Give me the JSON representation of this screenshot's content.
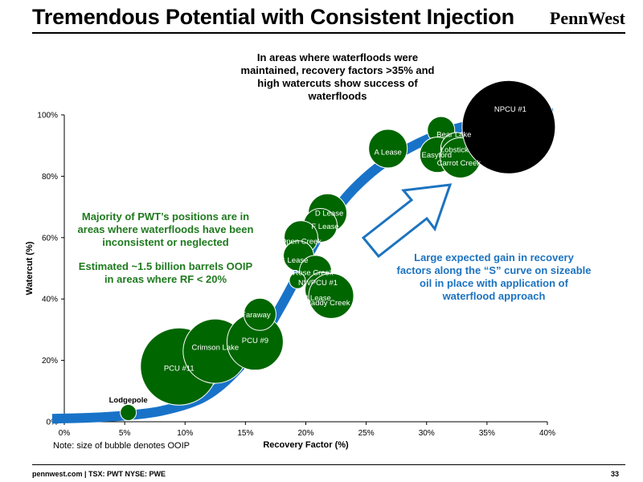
{
  "slide": {
    "title": "Tremendous Potential with Consistent Injection",
    "logo_text": "PennWest",
    "callout_top": "In areas where waterfloods were maintained, recovery factors >35% and high watercuts show success of waterfloods",
    "green_note_1": "Majority of PWT’s positions are in areas where waterfloods have been inconsistent or neglected",
    "green_note_2": "Estimated ~1.5 billion barrels OOIP in areas where RF < 20%",
    "blue_note": "Large expected gain in recovery factors along the “S” curve on sizeable oil in place with application of waterflood approach",
    "bubble_note": "Note: size of bubble denotes OOIP",
    "footer": "pennwest.com | TSX: PWT NYSE: PWE",
    "page_number": "33"
  },
  "colors": {
    "bubble": "#006600",
    "bubble_large": "#000000",
    "s_curve": "#1873c8",
    "arrow": "#1c73c0",
    "green_text": "#1f7a1f",
    "axis": "#000000"
  },
  "chart_data": {
    "type": "scatter",
    "title": "",
    "xlabel": "Recovery Factor (%)",
    "ylabel": "Watercut (%)",
    "xlim": [
      0,
      40
    ],
    "ylim": [
      0,
      100
    ],
    "x_ticks": [
      "0%",
      "5%",
      "10%",
      "15%",
      "20%",
      "25%",
      "30%",
      "35%",
      "40%"
    ],
    "y_ticks": [
      "0%",
      "20%",
      "40%",
      "60%",
      "80%",
      "100%"
    ],
    "grid": false,
    "trend_curve": {
      "shape": "S-curve",
      "x": [
        -1,
        2,
        5,
        8,
        11,
        13,
        15,
        16.5,
        18,
        19.5,
        21,
        22.5,
        24,
        26,
        28,
        30,
        32,
        34,
        36,
        38,
        40.5
      ],
      "y": [
        1,
        1.3,
        2,
        3.5,
        7,
        12,
        20,
        28,
        38,
        49,
        60,
        69,
        76,
        83,
        88,
        92,
        95,
        97,
        98.5,
        99.5,
        100.5
      ]
    },
    "points": [
      {
        "name": "Lodgepole",
        "x": 5.3,
        "y": 3,
        "r": 10
      },
      {
        "name": "PCU #11",
        "x": 9.5,
        "y": 18,
        "r": 48
      },
      {
        "name": "Crimson Lake",
        "x": 12.5,
        "y": 23,
        "r": 40
      },
      {
        "name": "PCU #9",
        "x": 15.8,
        "y": 26,
        "r": 35
      },
      {
        "name": "Faraway",
        "x": 16.2,
        "y": 35,
        "r": 20
      },
      {
        "name": "D Lease",
        "x": 21.8,
        "y": 68,
        "r": 24
      },
      {
        "name": "F Lease",
        "x": 21.2,
        "y": 64,
        "r": 21
      },
      {
        "name": "Open Creek",
        "x": 19.6,
        "y": 60,
        "r": 21
      },
      {
        "name": "G Lease",
        "x": 19.4,
        "y": 54,
        "r": 19
      },
      {
        "name": "Rose Creek",
        "x": 20.8,
        "y": 49,
        "r": 20
      },
      {
        "name": "NWPCU #1",
        "x": 19.3,
        "y": 46,
        "r": 10
      },
      {
        "name": "J Lease",
        "x": 21.4,
        "y": 43,
        "r": 22
      },
      {
        "name": "Paddy Creek",
        "x": 22.1,
        "y": 41,
        "r": 28
      },
      {
        "name": "A Lease",
        "x": 26.8,
        "y": 89,
        "r": 24
      },
      {
        "name": "Bear Lake",
        "x": 31.2,
        "y": 95,
        "r": 17
      },
      {
        "name": "Easyford",
        "x": 30.9,
        "y": 87,
        "r": 22
      },
      {
        "name": "Lobstick",
        "x": 32.5,
        "y": 89,
        "r": 20
      },
      {
        "name": "Carrot Creek",
        "x": 32.8,
        "y": 86,
        "r": 25
      },
      {
        "name": "NPCU #1",
        "x": 36.8,
        "y": 96,
        "r": 58
      }
    ]
  }
}
